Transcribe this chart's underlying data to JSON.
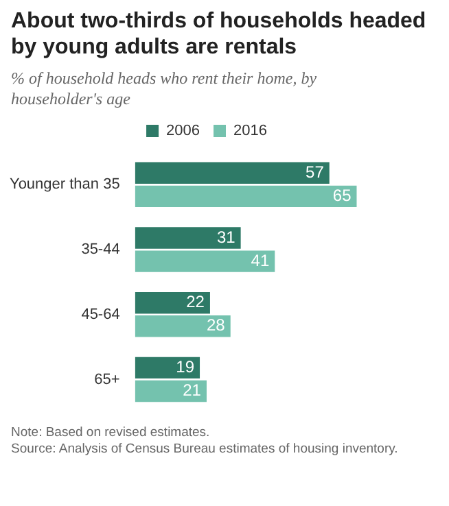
{
  "chart_data": {
    "type": "bar",
    "orientation": "horizontal",
    "title": "About two-thirds of households headed by young adults are rentals",
    "subtitle": "% of household heads who rent their home, by householder's age",
    "categories": [
      "Younger than 35",
      "35-44",
      "45-64",
      "65+"
    ],
    "series": [
      {
        "name": "2006",
        "color": "#2e7a67",
        "values": [
          57,
          31,
          22,
          19
        ]
      },
      {
        "name": "2016",
        "color": "#74c2ae",
        "values": [
          65,
          41,
          28,
          21
        ]
      }
    ],
    "data_labels": true,
    "legend": "top",
    "annotations": [
      "Note: Based on revised estimates.",
      "Source: Analysis of Census Bureau estimates of housing inventory."
    ]
  }
}
